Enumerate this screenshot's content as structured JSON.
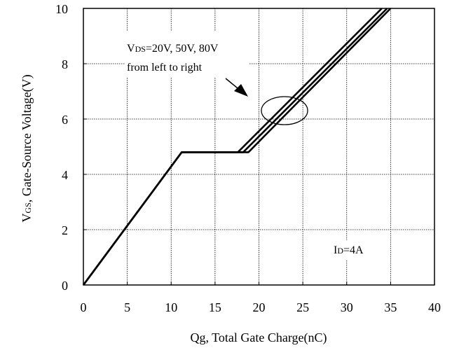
{
  "chart_data": {
    "type": "line",
    "xlabel": "Qg, Total Gate Charge(nC)",
    "ylabel_parts": {
      "main": "V",
      "sub": "GS",
      "rest": ", Gate-Source Voltage(V)"
    },
    "xlim": [
      0,
      40
    ],
    "ylim": [
      0,
      10
    ],
    "x_ticks": [
      "0",
      "5",
      "10",
      "15",
      "20",
      "25",
      "30",
      "35",
      "40"
    ],
    "y_ticks": [
      "0",
      "2",
      "4",
      "6",
      "8",
      "10"
    ],
    "grid": true,
    "series": [
      {
        "x": [
          0,
          11.2,
          17.6,
          34.0
        ],
        "y": [
          0,
          4.8,
          4.8,
          10.0
        ]
      },
      {
        "x": [
          0,
          11.2,
          18.2,
          34.6
        ],
        "y": [
          0,
          4.8,
          4.8,
          10.0
        ]
      },
      {
        "x": [
          0,
          11.2,
          18.8,
          35.0
        ],
        "y": [
          0,
          4.8,
          4.8,
          10.0
        ]
      }
    ],
    "annotation": {
      "line1_main": "V",
      "line1_sub": "DS",
      "line1_rest": "=20V, 50V, 80V",
      "line2": "from left to right"
    },
    "condition": {
      "main": "I",
      "sub": "D",
      "rest": "=4A"
    },
    "colors": {
      "line": "#000000",
      "grid": "#000000",
      "background": "#ffffff"
    }
  }
}
